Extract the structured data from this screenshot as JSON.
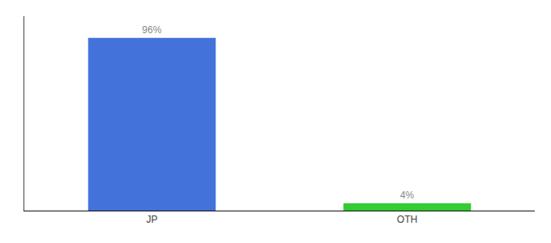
{
  "chart_data": {
    "type": "bar",
    "categories": [
      "JP",
      "OTH"
    ],
    "values": [
      96,
      4
    ],
    "value_labels": [
      "96%",
      "4%"
    ],
    "colors": [
      "#4472db",
      "#33cc33"
    ],
    "ylim": [
      0,
      108
    ],
    "grid": false,
    "data_labels": true,
    "tick_labels": "x"
  }
}
